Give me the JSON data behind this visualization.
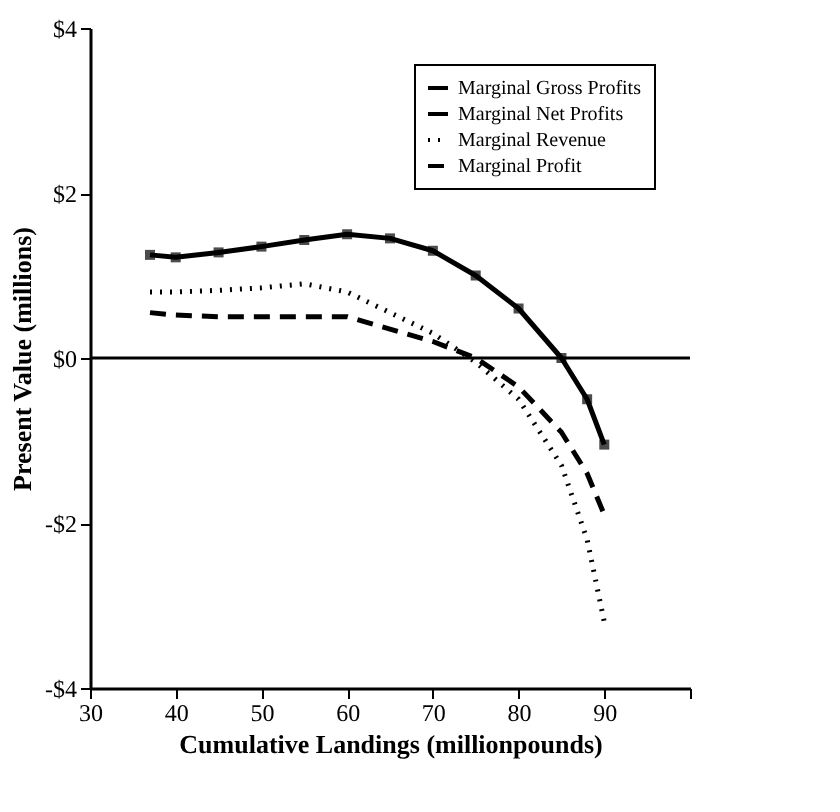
{
  "chart_data": {
    "type": "line",
    "xlabel": "Cumulative Landings (millionpounds)",
    "ylabel": "Present Value (millions)",
    "xlim": [
      30,
      100
    ],
    "xticks": [
      30,
      40,
      50,
      60,
      70,
      80,
      90,
      {
        "value": 100,
        "label": null
      }
    ],
    "ylim": [
      -4,
      4
    ],
    "yticks": [
      {
        "value": -4,
        "label": "-$4"
      },
      {
        "value": -2,
        "label": "-$2"
      },
      {
        "value": 0,
        "label": "$0"
      },
      {
        "value": 2,
        "label": "$2"
      },
      {
        "value": 4,
        "label": "$4"
      }
    ],
    "x": [
      37,
      40,
      45,
      50,
      55,
      60,
      65,
      70,
      75,
      80,
      85,
      88,
      90
    ],
    "series": [
      {
        "name": "Marginal Gross Profits",
        "color": "#000000",
        "line_style": "solid",
        "marker": "none",
        "values": [
          1.25,
          1.22,
          1.28,
          1.35,
          1.43,
          1.5,
          1.45,
          1.3,
          1.0,
          0.6,
          0.0,
          -0.5,
          -1.05
        ]
      },
      {
        "name": "Marginal Net Profits",
        "color": "#000000",
        "type": "scatter",
        "marker": "square",
        "values": [
          1.25,
          1.22,
          1.28,
          1.35,
          1.43,
          1.5,
          1.45,
          1.3,
          1.0,
          0.6,
          0.0,
          -0.5,
          -1.05
        ]
      },
      {
        "name": "Marginal Revenue",
        "color": "#000000",
        "line_style": "dotted",
        "marker": "none",
        "values": [
          0.8,
          0.8,
          0.82,
          0.85,
          0.9,
          0.8,
          0.55,
          0.3,
          -0.05,
          -0.5,
          -1.3,
          -2.2,
          -3.2
        ]
      },
      {
        "name": "Marginal Profit",
        "color": "#000000",
        "line_style": "dashed",
        "marker": "none",
        "values": [
          0.55,
          0.52,
          0.5,
          0.5,
          0.5,
          0.5,
          0.35,
          0.2,
          0.0,
          -0.35,
          -0.9,
          -1.4,
          -1.9
        ]
      }
    ],
    "ref_lines": [
      {
        "axis": "y",
        "value": 0,
        "label": null,
        "color": "#000000"
      }
    ],
    "grid": false,
    "legend": "top right"
  }
}
